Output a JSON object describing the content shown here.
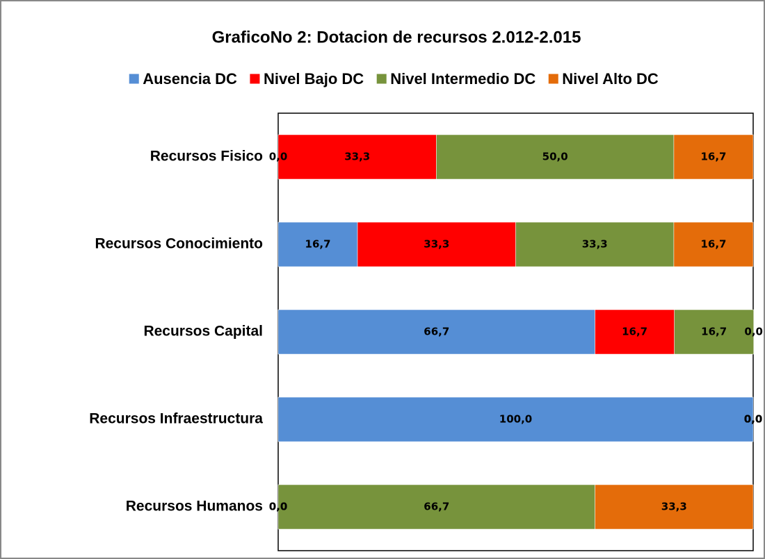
{
  "chart_data": {
    "type": "stacked_barh",
    "title": "GraficoNo 2: Dotacion de recursos 2.012-2.015",
    "categories": [
      "Recursos Fisico",
      "Recursos Conocimiento",
      "Recursos Capital",
      "Recursos Infraestructura",
      "Recursos Humanos"
    ],
    "series": [
      {
        "name": "Ausencia DC",
        "color": "#558ed5",
        "values": [
          0,
          16.7,
          66.7,
          100,
          0
        ],
        "value_labels": [
          "0,0",
          "16,7",
          "66,7",
          "100,0",
          "0,0"
        ]
      },
      {
        "name": "Nivel Bajo DC",
        "color": "#ff0000",
        "values": [
          33.3,
          33.3,
          16.7,
          0,
          0
        ],
        "value_labels": [
          "33,3",
          "33,3",
          "16,7",
          "0,0",
          "0,0"
        ]
      },
      {
        "name": "Nivel Intermedio DC",
        "color": "#77933c",
        "values": [
          50,
          33.3,
          16.7,
          0,
          66.7
        ],
        "value_labels": [
          "50,0",
          "33,3",
          "16,7",
          "0,0",
          "66,7"
        ]
      },
      {
        "name": "Nivel Alto DC",
        "color": "#e46c0a",
        "values": [
          16.7,
          16.7,
          0,
          0,
          33.3
        ],
        "value_labels": [
          "16,7",
          "16,7",
          "0,0",
          "0,0",
          "33,3"
        ]
      }
    ],
    "xlim": [
      0,
      100
    ],
    "legend": "top"
  }
}
